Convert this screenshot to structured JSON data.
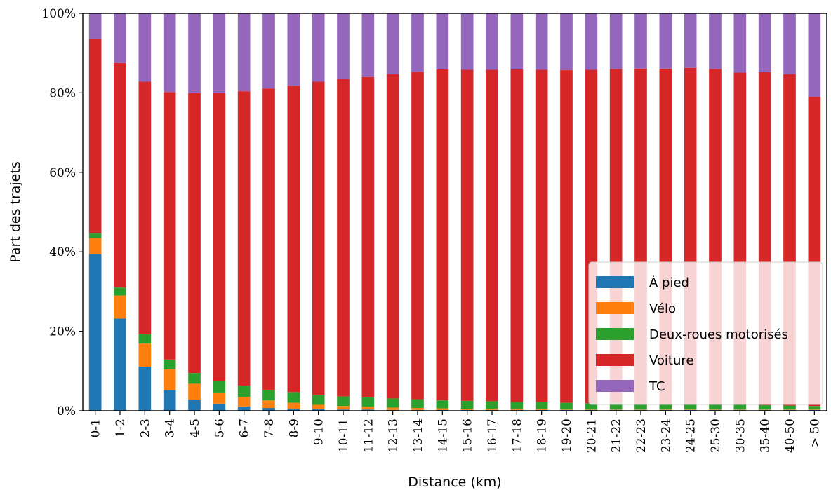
{
  "chart_data": {
    "type": "bar",
    "stacked": true,
    "xlabel": "Distance (km)",
    "ylabel": "Part des trajets",
    "ylim": [
      0,
      100
    ],
    "yticks": [
      0,
      20,
      40,
      60,
      80,
      100
    ],
    "ytick_labels": [
      "0%",
      "20%",
      "40%",
      "60%",
      "80%",
      "100%"
    ],
    "legend_position": "lower-right",
    "categories": [
      "0-1",
      "1-2",
      "2-3",
      "3-4",
      "4-5",
      "5-6",
      "6-7",
      "7-8",
      "8-9",
      "9-10",
      "10-11",
      "11-12",
      "12-13",
      "13-14",
      "14-15",
      "15-16",
      "16-17",
      "17-18",
      "18-19",
      "19-20",
      "20-21",
      "21-22",
      "22-23",
      "23-24",
      "24-25",
      "25-30",
      "30-35",
      "35-40",
      "40-50",
      "> 50"
    ],
    "series": [
      {
        "name": "À pied",
        "color": "#1f77b4",
        "values": [
          39.4,
          23.2,
          11.1,
          5.2,
          2.8,
          1.8,
          1.1,
          0.7,
          0.5,
          0.4,
          0.3,
          0.3,
          0.2,
          0.2,
          0.2,
          0.2,
          0.2,
          0.2,
          0.2,
          0.2,
          0.2,
          0.2,
          0.2,
          0.2,
          0.2,
          0.2,
          0.2,
          0.2,
          0.2,
          0.2
        ]
      },
      {
        "name": "Vélo",
        "color": "#ff7f0e",
        "values": [
          4.0,
          5.8,
          5.8,
          5.2,
          4.0,
          2.8,
          2.4,
          1.9,
          1.5,
          1.1,
          0.9,
          0.7,
          0.6,
          0.5,
          0.4,
          0.3,
          0.3,
          0.2,
          0.2,
          0.1,
          0.1,
          0.1,
          0.1,
          0.1,
          0.1,
          0.1,
          0.1,
          0.1,
          0.1,
          0.1
        ]
      },
      {
        "name": "Deux-roues motorisés",
        "color": "#2ca02c",
        "values": [
          1.2,
          2.0,
          2.5,
          2.5,
          2.7,
          2.9,
          2.8,
          2.7,
          2.7,
          2.5,
          2.4,
          2.4,
          2.3,
          2.2,
          2.0,
          2.0,
          1.9,
          1.8,
          1.8,
          1.7,
          1.6,
          1.6,
          1.5,
          1.5,
          1.5,
          1.3,
          1.2,
          1.1,
          1.0,
          0.9
        ]
      },
      {
        "name": "Voiture",
        "color": "#d62728",
        "values": [
          48.9,
          56.5,
          63.4,
          67.3,
          70.4,
          72.4,
          74.1,
          75.8,
          77.1,
          78.8,
          79.9,
          80.6,
          81.6,
          82.4,
          83.3,
          83.3,
          83.4,
          83.7,
          83.6,
          83.7,
          83.9,
          84.1,
          84.3,
          84.3,
          84.5,
          84.4,
          83.6,
          83.8,
          83.4,
          77.8
        ]
      },
      {
        "name": "TC",
        "color": "#9467bd",
        "values": [
          6.5,
          12.5,
          17.2,
          19.8,
          20.1,
          20.1,
          19.6,
          18.9,
          18.2,
          17.2,
          16.5,
          16.0,
          15.3,
          14.7,
          14.1,
          14.2,
          14.2,
          14.1,
          14.2,
          14.3,
          14.2,
          14.0,
          13.9,
          13.9,
          13.7,
          14.0,
          14.9,
          14.8,
          15.3,
          21.0
        ]
      }
    ]
  }
}
